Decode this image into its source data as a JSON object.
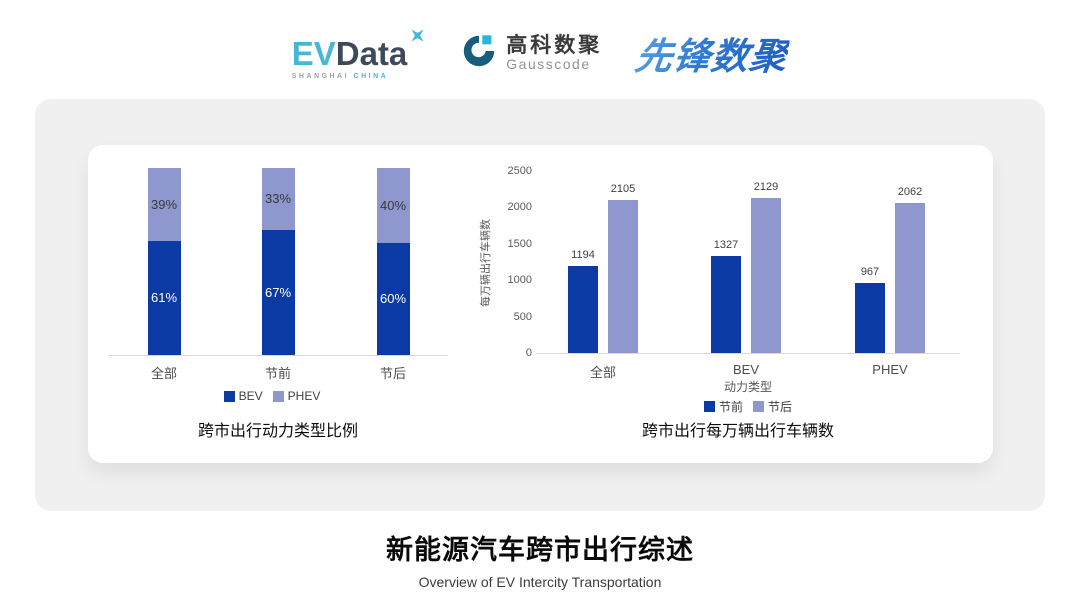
{
  "logos": {
    "evdata": {
      "ev": "EV",
      "data": "Data",
      "sub_left": "SHANGHAI",
      "sub_right": "CHINA"
    },
    "gausscode": {
      "cn": "高科数聚",
      "en": "Gausscode"
    },
    "xianfeng": {
      "text": "先锋数聚"
    }
  },
  "footer": {
    "title": "新能源汽车跨市出行综述",
    "subtitle": "Overview of EV Intercity Transportation"
  },
  "colors": {
    "dark_blue": "#0c3aa4",
    "light_blue": "#8e97ce",
    "panel_gray": "#f0f0f0",
    "axis_gray": "#d9d9d9",
    "tick_text": "#595959",
    "evdata_cyan": "#45b8d9",
    "evdata_slate": "#3e4a5a",
    "gauss_teal": "#175d7d",
    "gauss_cyan": "#2ab5d8"
  },
  "chart_data": [
    {
      "type": "bar",
      "subtype": "stacked-percent",
      "title": "跨市出行动力类型比例",
      "categories": [
        "全部",
        "节前",
        "节后"
      ],
      "series": [
        {
          "name": "BEV",
          "values": [
            61,
            67,
            60
          ],
          "color": "#0c3aa4",
          "label_color": "#ffffff"
        },
        {
          "name": "PHEV",
          "values": [
            39,
            33,
            40
          ],
          "color": "#8e97ce",
          "label_color": "#3a3a3a"
        }
      ],
      "value_labels": {
        "BEV": [
          "61%",
          "67%",
          "60%"
        ],
        "PHEV": [
          "39%",
          "33%",
          "40%"
        ]
      },
      "legend": [
        "BEV",
        "PHEV"
      ],
      "legend_position": "bottom",
      "ylim": [
        0,
        100
      ],
      "grid": false
    },
    {
      "type": "bar",
      "subtype": "grouped",
      "title": "跨市出行每万辆出行车辆数",
      "categories": [
        "全部",
        "BEV",
        "PHEV"
      ],
      "xlabel": "动力类型",
      "ylabel": "每万辆出行车辆数",
      "ylim": [
        0,
        2500
      ],
      "yticks": [
        0,
        500,
        1000,
        1500,
        2000,
        2500
      ],
      "series": [
        {
          "name": "节前",
          "values": [
            1194,
            1327,
            967
          ],
          "color": "#0c3aa4"
        },
        {
          "name": "节后",
          "values": [
            2105,
            2129,
            2062
          ],
          "color": "#8e97ce"
        }
      ],
      "legend": [
        "节前",
        "节后"
      ],
      "legend_position": "bottom",
      "grid": false
    }
  ]
}
